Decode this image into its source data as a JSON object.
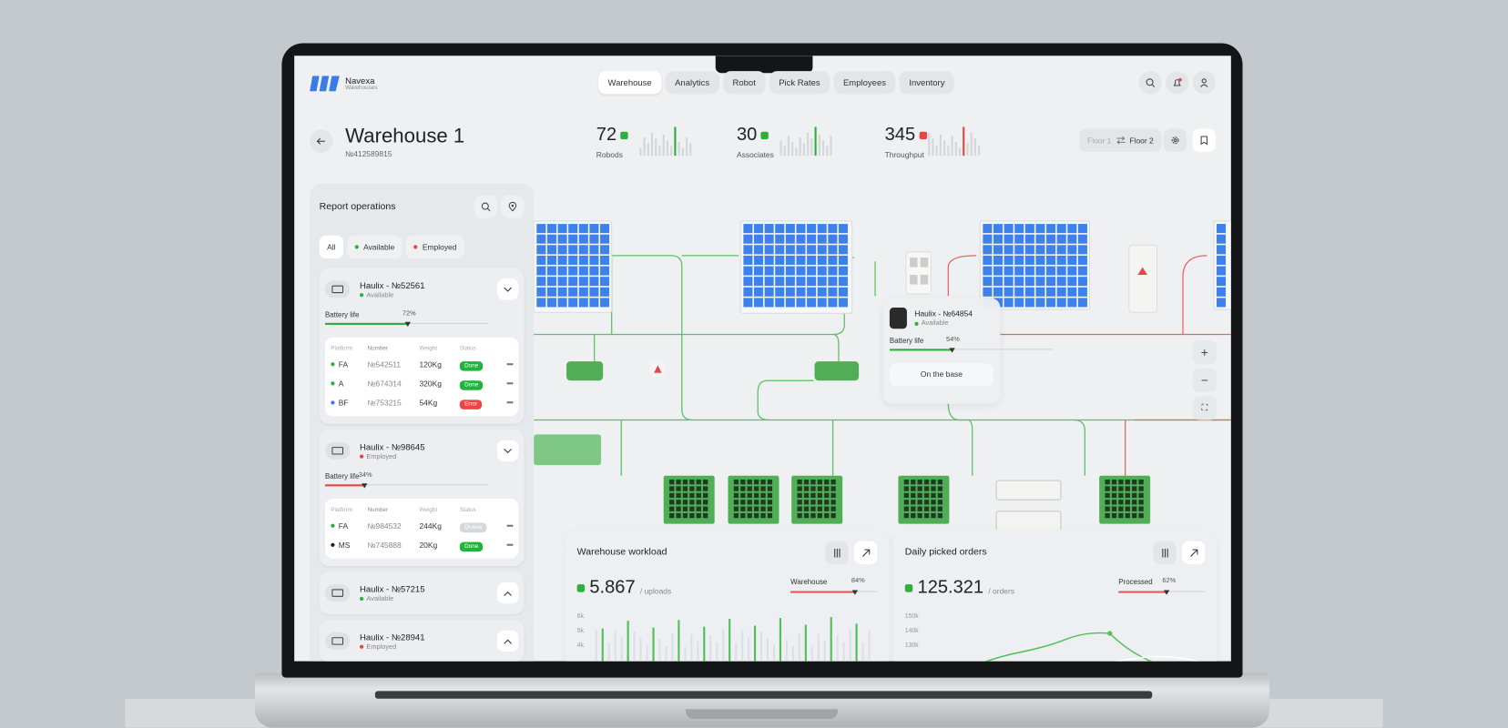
{
  "header": {
    "brand": "Navexa",
    "subtitle": "Warehouses",
    "nav": [
      "Warehouse",
      "Analytics",
      "Robot",
      "Pick Rates",
      "Employees",
      "Inventory"
    ]
  },
  "warehouse": {
    "title": "Warehouse 1",
    "id": "№412589815"
  },
  "stats": [
    {
      "value": 72,
      "label": "Robods",
      "color": "#2fae3c"
    },
    {
      "value": 30,
      "label": "Associates",
      "color": "#2fae3c"
    },
    {
      "value": 345,
      "label": "Throughput",
      "color": "#e54545"
    }
  ],
  "floors": [
    "Floor 1",
    "Floor 2"
  ],
  "report": {
    "title": "Report operations",
    "filters": [
      {
        "label": "All"
      },
      {
        "label": "Available",
        "color": "#2fae3c"
      },
      {
        "label": "Employed",
        "color": "#e54545"
      }
    ],
    "columns": [
      "Platform",
      "Number",
      "Weight",
      "Status"
    ],
    "robots": [
      {
        "name": "Haulix - №52561",
        "status": "Available",
        "status_color": "#2fae3c",
        "battery_label": "Battery life",
        "battery": "72%",
        "battery_color": "#2fae3c",
        "rows": [
          {
            "platform": "FA",
            "platform_color": "#2fae3c",
            "number": "№542511",
            "weight": "120Kg",
            "status": "Done",
            "status_color": "#1fb53a"
          },
          {
            "platform": "A",
            "platform_color": "#2fae3c",
            "number": "№674314",
            "weight": "320Kg",
            "status": "Done",
            "status_color": "#1fb53a"
          },
          {
            "platform": "BF",
            "platform_color": "#3b7be8",
            "number": "№753215",
            "weight": "54Kg",
            "status": "Error",
            "status_color": "#ef4444"
          }
        ]
      },
      {
        "name": "Haulix - №98645",
        "status": "Employed",
        "status_color": "#e54545",
        "battery_label": "Battery life",
        "battery": "34%",
        "battery_color": "#e54545",
        "rows": [
          {
            "platform": "FA",
            "platform_color": "#2fae3c",
            "number": "№984532",
            "weight": "244Kg",
            "status": "Queue",
            "status_color": "#d5d8db"
          },
          {
            "platform": "MS",
            "platform_color": "#222222",
            "number": "№745888",
            "weight": "20Kg",
            "status": "Done",
            "status_color": "#1fb53a"
          }
        ]
      },
      {
        "name": "Haulix - №57215",
        "status": "Available",
        "status_color": "#2fae3c"
      },
      {
        "name": "Haulix - №28941",
        "status": "Employed",
        "status_color": "#e54545"
      }
    ]
  },
  "popup": {
    "name": "Haulix - №64854",
    "status": "Available",
    "status_color": "#2fae3c",
    "battery_label": "Battery life",
    "battery": "54%",
    "action": "On the base"
  },
  "cards": [
    {
      "title": "Warehouse workload",
      "value": "5.867",
      "unit": "/ uploads",
      "meter_label": "Warehouse",
      "meter": "84%",
      "meter_color": "#e05a5a",
      "ticks": [
        "6k",
        "5k",
        "4k"
      ],
      "kind": "bars"
    },
    {
      "title": "Daily picked orders",
      "value": "125.321",
      "unit": "/ orders",
      "meter_label": "Processed",
      "meter": "62%",
      "meter_color": "#e05a5a",
      "ticks": [
        "150k",
        "140k",
        "130k"
      ],
      "kind": "line"
    }
  ]
}
